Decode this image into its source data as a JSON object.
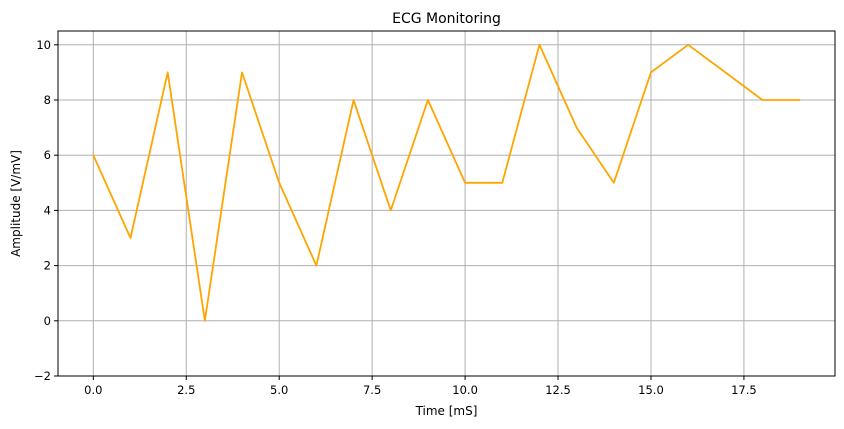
{
  "chart_data": {
    "type": "line",
    "title": "ECG Monitoring",
    "xlabel": "Time [mS]",
    "ylabel": "Amplitude [V/mV]",
    "x": [
      0,
      1,
      2,
      3,
      4,
      5,
      6,
      7,
      8,
      9,
      10,
      11,
      12,
      13,
      14,
      15,
      16,
      17,
      18,
      19
    ],
    "series": [
      {
        "values": [
          6,
          3,
          9,
          0,
          9,
          5,
          2,
          8,
          4,
          8,
          5,
          5,
          10,
          7,
          5,
          9,
          10,
          9,
          8,
          8
        ],
        "color": "#ffa500"
      }
    ],
    "xlim": [
      -0.95,
      19.95
    ],
    "ylim": [
      -2,
      10.5
    ],
    "xticks": [
      0,
      2.5,
      5,
      7.5,
      10,
      12.5,
      15,
      17.5
    ],
    "xtick_labels": [
      "0.0",
      "2.5",
      "5.0",
      "7.5",
      "10.0",
      "12.5",
      "15.0",
      "17.5"
    ],
    "yticks": [
      -2,
      0,
      2,
      4,
      6,
      8,
      10
    ],
    "ytick_labels": [
      "−2",
      "0",
      "2",
      "4",
      "6",
      "8",
      "10"
    ],
    "grid": true,
    "legend": false
  }
}
